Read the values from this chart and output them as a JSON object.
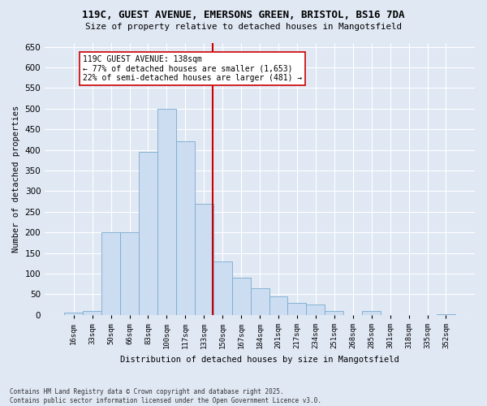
{
  "title_line1": "119C, GUEST AVENUE, EMERSONS GREEN, BRISTOL, BS16 7DA",
  "title_line2": "Size of property relative to detached houses in Mangotsfield",
  "xlabel": "Distribution of detached houses by size in Mangotsfield",
  "ylabel": "Number of detached properties",
  "footnote": "Contains HM Land Registry data © Crown copyright and database right 2025.\nContains public sector information licensed under the Open Government Licence v3.0.",
  "bin_labels": [
    "16sqm",
    "33sqm",
    "50sqm",
    "66sqm",
    "83sqm",
    "100sqm",
    "117sqm",
    "133sqm",
    "150sqm",
    "167sqm",
    "184sqm",
    "201sqm",
    "217sqm",
    "234sqm",
    "251sqm",
    "268sqm",
    "285sqm",
    "301sqm",
    "318sqm",
    "335sqm",
    "352sqm"
  ],
  "bar_heights": [
    5,
    10,
    200,
    200,
    395,
    500,
    420,
    270,
    130,
    90,
    65,
    45,
    30,
    25,
    10,
    0,
    10,
    0,
    0,
    0,
    2
  ],
  "bar_color": "#ccddf2",
  "bar_edge_color": "#7aabcf",
  "vline_x": 7.45,
  "vline_color": "#cc0000",
  "annotation_text": "119C GUEST AVENUE: 138sqm\n← 77% of detached houses are smaller (1,653)\n22% of semi-detached houses are larger (481) →",
  "annotation_box_facecolor": "white",
  "annotation_box_edgecolor": "#cc0000",
  "ylim": [
    0,
    660
  ],
  "yticks": [
    0,
    50,
    100,
    150,
    200,
    250,
    300,
    350,
    400,
    450,
    500,
    550,
    600,
    650
  ],
  "background_color": "#e0e8f4",
  "grid_color": "#ffffff"
}
